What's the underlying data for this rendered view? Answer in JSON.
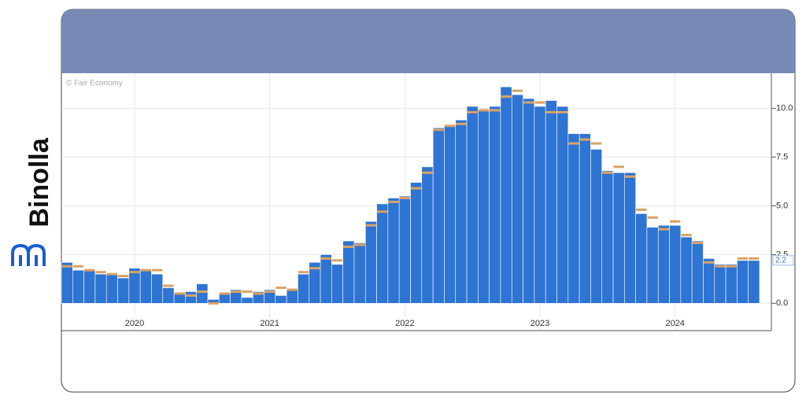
{
  "brand": "Binolla",
  "chart_data": {
    "type": "bar",
    "credit": "© Fair Economy",
    "categories": [
      null,
      null,
      null,
      null,
      null,
      null,
      "2020",
      null,
      null,
      null,
      null,
      null,
      null,
      null,
      null,
      null,
      null,
      null,
      "2021",
      null,
      null,
      null,
      null,
      null,
      null,
      null,
      null,
      null,
      null,
      null,
      "2022",
      null,
      null,
      null,
      null,
      null,
      null,
      null,
      null,
      null,
      null,
      null,
      "2023",
      null,
      null,
      null,
      null,
      null,
      null,
      null,
      null,
      null,
      null,
      null,
      "2024",
      null,
      null,
      null,
      null,
      null,
      null,
      null
    ],
    "values": [
      2.1,
      1.7,
      1.7,
      1.5,
      1.5,
      1.3,
      1.8,
      1.7,
      1.5,
      0.8,
      0.5,
      0.6,
      1.0,
      0.2,
      0.5,
      0.7,
      0.3,
      0.6,
      0.7,
      0.4,
      0.7,
      1.5,
      2.1,
      2.5,
      2.0,
      3.2,
      3.1,
      4.2,
      5.1,
      5.4,
      5.5,
      6.2,
      7.0,
      9.0,
      9.1,
      9.4,
      10.1,
      9.9,
      10.1,
      11.1,
      10.7,
      10.5,
      10.1,
      10.4,
      10.1,
      8.7,
      8.7,
      7.9,
      6.8,
      6.7,
      6.7,
      4.6,
      3.9,
      4.0,
      4.0,
      3.4,
      3.2,
      2.3,
      2.0,
      2.0,
      2.2,
      2.2
    ],
    "color": "#2e74d2",
    "forecast": [
      1.9,
      1.9,
      1.7,
      1.6,
      1.5,
      1.4,
      1.6,
      1.7,
      1.7,
      0.9,
      0.5,
      0.4,
      0.6,
      0.0,
      0.5,
      0.6,
      0.6,
      0.5,
      0.6,
      0.8,
      0.7,
      1.6,
      1.8,
      2.3,
      2.2,
      2.9,
      3.0,
      4.0,
      4.7,
      5.2,
      5.4,
      5.9,
      6.7,
      8.9,
      9.1,
      9.2,
      9.8,
      9.9,
      9.9,
      10.6,
      10.9,
      10.3,
      10.3,
      9.8,
      9.8,
      8.2,
      8.4,
      8.2,
      6.7,
      7.0,
      6.5,
      4.8,
      4.4,
      3.8,
      4.2,
      3.5,
      3.1,
      2.1,
      1.9,
      1.9,
      2.3,
      2.3
    ],
    "forecast_color": "#d9a264",
    "ylim": [
      -1.4,
      11.8
    ],
    "yticks": [
      {
        "value": 0,
        "label": "0.0"
      },
      {
        "value": 2.5,
        "label": "2.5"
      },
      {
        "value": 5,
        "label": "5.0"
      },
      {
        "value": 7.5,
        "label": "7.5"
      },
      {
        "value": 10,
        "label": "10.0"
      }
    ],
    "grid": true
  }
}
